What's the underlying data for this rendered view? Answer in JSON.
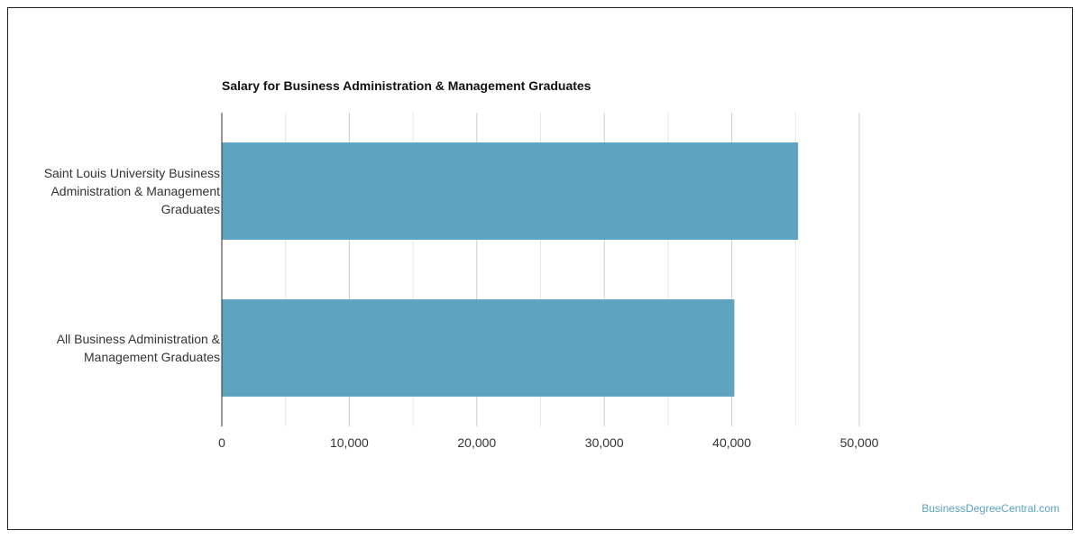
{
  "chart_data": {
    "type": "bar",
    "orientation": "horizontal",
    "title": "Salary for Business Administration & Management Graduates",
    "categories": [
      [
        "Saint Louis University Business",
        "Administration & Management",
        "Graduates"
      ],
      [
        "All Business Administration &",
        "Management Graduates"
      ]
    ],
    "values": [
      45200,
      40200
    ],
    "xlim": [
      0,
      50000
    ],
    "x_ticks": [
      0,
      10000,
      20000,
      30000,
      40000,
      50000
    ],
    "x_tick_labels": [
      "0",
      "10,000",
      "20,000",
      "30,000",
      "40,000",
      "50,000"
    ],
    "grid": true,
    "bar_color": "#5ea3bf"
  },
  "footer": {
    "watermark": "BusinessDegreeCentral.com"
  }
}
